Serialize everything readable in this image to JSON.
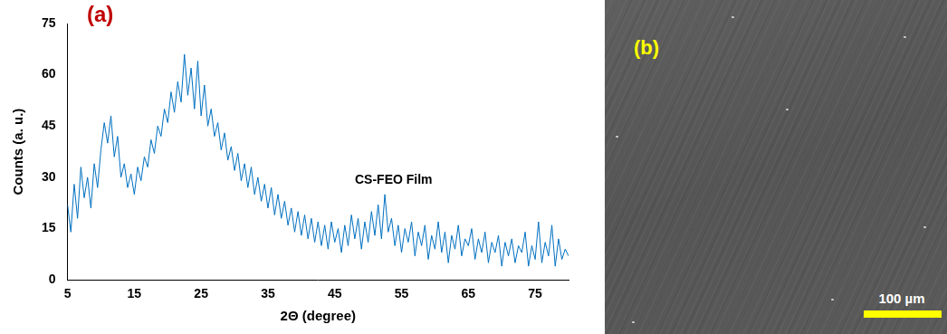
{
  "chart_data": {
    "type": "line",
    "title": "(a)",
    "annotations": [
      "CS-FEO Film"
    ],
    "x_label": "2Θ (degree)",
    "y_label": "Counts (a. u.)",
    "x": [
      5,
      5.5,
      6,
      6.5,
      7,
      7.5,
      8,
      8.5,
      9,
      9.5,
      10,
      10.5,
      11,
      11.5,
      12,
      12.5,
      13,
      13.5,
      14,
      14.5,
      15,
      15.5,
      16,
      16.5,
      17,
      17.5,
      18,
      18.5,
      19,
      19.5,
      20,
      20.5,
      21,
      21.5,
      22,
      22.5,
      23,
      23.5,
      24,
      24.5,
      25,
      25.5,
      26,
      26.5,
      27,
      27.5,
      28,
      28.5,
      29,
      29.5,
      30,
      30.5,
      31,
      31.5,
      32,
      32.5,
      33,
      33.5,
      34,
      34.5,
      35,
      35.5,
      36,
      36.5,
      37,
      37.5,
      38,
      38.5,
      39,
      39.5,
      40,
      40.5,
      41,
      41.5,
      42,
      42.5,
      43,
      43.5,
      44,
      44.5,
      45,
      45.5,
      46,
      46.5,
      47,
      47.5,
      48,
      48.5,
      49,
      49.5,
      50,
      50.5,
      51,
      51.5,
      52,
      52.5,
      53,
      53.5,
      54,
      54.5,
      55,
      55.5,
      56,
      56.5,
      57,
      57.5,
      58,
      58.5,
      59,
      59.5,
      60,
      60.5,
      61,
      61.5,
      62,
      62.5,
      63,
      63.5,
      64,
      64.5,
      65,
      65.5,
      66,
      66.5,
      67,
      67.5,
      68,
      68.5,
      69,
      69.5,
      70,
      70.5,
      71,
      71.5,
      72,
      72.5,
      73,
      73.5,
      74,
      74.5,
      75,
      75.5,
      76,
      76.5,
      77,
      77.5,
      78,
      78.5,
      79,
      79.5,
      80
    ],
    "values": [
      22,
      14,
      28,
      18,
      33,
      24,
      30,
      21,
      34,
      27,
      38,
      46,
      40,
      48,
      36,
      42,
      30,
      34,
      27,
      31,
      25,
      33,
      29,
      36,
      33,
      41,
      37,
      45,
      42,
      50,
      46,
      55,
      49,
      58,
      52,
      66,
      54,
      62,
      50,
      64,
      48,
      57,
      45,
      50,
      42,
      46,
      38,
      43,
      35,
      39,
      32,
      37,
      29,
      34,
      27,
      33,
      25,
      30,
      23,
      28,
      21,
      27,
      19,
      25,
      18,
      23,
      16,
      21,
      14,
      20,
      13,
      19,
      12,
      18,
      11,
      17,
      10,
      16,
      9,
      17,
      11,
      15,
      8,
      16,
      10,
      19,
      12,
      18,
      9,
      17,
      11,
      20,
      13,
      22,
      12,
      25,
      14,
      18,
      10,
      16,
      8,
      15,
      11,
      17,
      7,
      14,
      10,
      16,
      6,
      13,
      9,
      17,
      8,
      14,
      5,
      13,
      9,
      16,
      7,
      12,
      10,
      15,
      6,
      12,
      8,
      14,
      5,
      11,
      8,
      13,
      4,
      11,
      7,
      12,
      5,
      10,
      8,
      14,
      4,
      10,
      6,
      17,
      5,
      11,
      7,
      16,
      4,
      12,
      6,
      9,
      7
    ],
    "color": "#0070c0",
    "xlim": [
      5,
      80
    ],
    "xticks": [
      5,
      15,
      25,
      35,
      45,
      55,
      65,
      75
    ],
    "ylim": [
      0,
      75
    ],
    "yticks": [
      0,
      15,
      30,
      45,
      60,
      75
    ],
    "grid": false
  },
  "image_panel": {
    "label": "(b)",
    "scale_bar": "100 µm"
  }
}
